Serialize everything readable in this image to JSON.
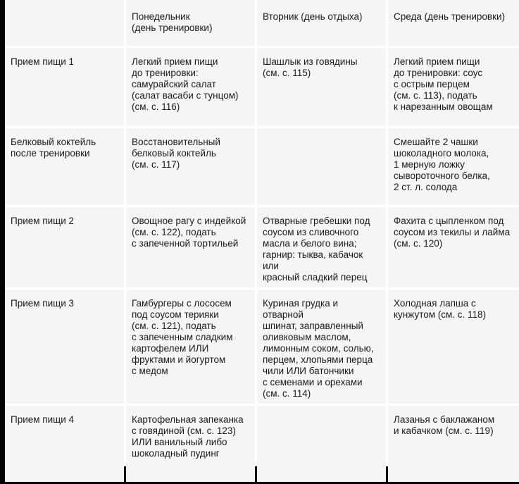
{
  "header": [
    "",
    "Понедельник\n(день тренировки)",
    "Вторник (день отдыха)",
    "Среда (день тренировки)"
  ],
  "rows": [
    [
      "Прием пищи 1",
      "Легкий прием пищи\nдо тренировки:\nсамурайский салат\n(салат васаби с тунцом)\n(см. с. 116)",
      "Шашлык из говядины\n(см. с. 115)",
      "Легкий прием пищи\nдо тренировки: соус\nс острым перцем\n(см. с. 113), подать\nк нарезанным овощам"
    ],
    [
      "Белковый коктейль\nпосле тренировки",
      "Восстановительный\nбелковый коктейль\n(см. с. 117)",
      "",
      "Смешайте 2 чашки\nшоколадного молока,\n1 мерную ложку\nсывороточного белка,\n2 ст. л. солода"
    ],
    [
      "Прием пищи 2",
      "Овощное рагу с индейкой\n(см. с. 122), подать\nс запеченной тортильей",
      "Отварные гребешки под\nсоусом из сливочного\nмасла и белого вина;\nгарнир: тыква, кабачок или\nкрасный сладкий перец",
      "Фахита с цыпленком под\nсоусом из текилы и лайма\n(см. с. 120)"
    ],
    [
      "Прием пищи 3",
      "Гамбургеры с лососем\nпод соусом терияки\n(см. с. 121), подать\nс запеченным сладким\nкартофелем ИЛИ\nфруктами и йогуртом\nс медом",
      "Куриная грудка и отварной\nшпинат, заправленный\nоливковым маслом,\nлимонным соком, солью,\nперцем, хлопьями перца\nчили ИЛИ батончики\nс семенами и орехами\n(см. с. 114)",
      "Холодная лапша с\nкунжутом (см. с. 118)"
    ],
    [
      "Прием пищи 4",
      "Картофельная запеканка\nс говядиной (см. с. 123)\nИЛИ ванильный либо\nшоколадный пудинг",
      "",
      "Лазанья с баклажаном\nи кабачком (см. с. 119)"
    ]
  ]
}
